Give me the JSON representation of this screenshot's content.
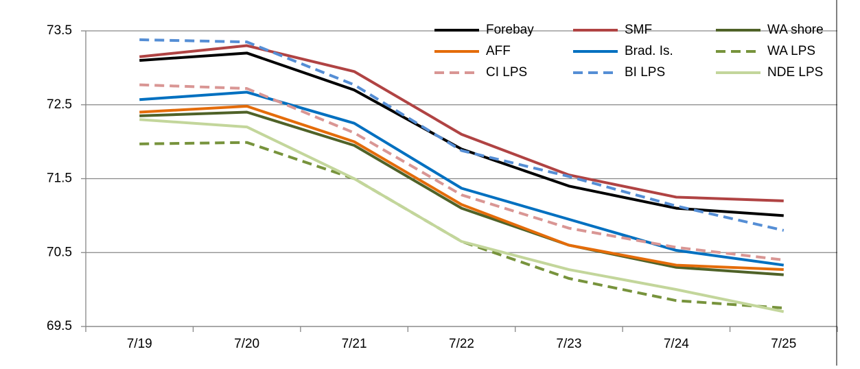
{
  "chart_data": {
    "type": "line",
    "categories": [
      "7/19",
      "7/20",
      "7/21",
      "7/22",
      "7/23",
      "7/24",
      "7/25"
    ],
    "series": [
      {
        "name": "Forebay",
        "color": "#000000",
        "dash": false,
        "values": [
          73.1,
          73.2,
          72.7,
          71.9,
          71.4,
          71.1,
          71.0
        ]
      },
      {
        "name": "SMF",
        "color": "#b04343",
        "dash": false,
        "values": [
          73.15,
          73.3,
          72.95,
          72.1,
          71.55,
          71.25,
          71.2
        ]
      },
      {
        "name": "WA shore",
        "color": "#4f6228",
        "dash": false,
        "values": [
          72.35,
          72.4,
          71.95,
          71.1,
          70.6,
          70.3,
          70.2
        ]
      },
      {
        "name": "AFF",
        "color": "#e46c0a",
        "dash": false,
        "values": [
          72.4,
          72.48,
          72.0,
          71.15,
          70.6,
          70.33,
          70.27
        ]
      },
      {
        "name": "Brad. Is.",
        "color": "#0070c0",
        "dash": false,
        "values": [
          72.57,
          72.67,
          72.25,
          71.37,
          70.95,
          70.53,
          70.33
        ]
      },
      {
        "name": "WA LPS",
        "color": "#77933c",
        "dash": true,
        "values": [
          71.97,
          71.99,
          71.5,
          70.65,
          70.15,
          69.85,
          69.75
        ]
      },
      {
        "name": "CI LPS",
        "color": "#d99694",
        "dash": true,
        "values": [
          72.77,
          72.72,
          72.12,
          71.28,
          70.83,
          70.57,
          70.4
        ]
      },
      {
        "name": "BI LPS",
        "color": "#558ed5",
        "dash": true,
        "values": [
          73.38,
          73.35,
          72.77,
          71.88,
          71.53,
          71.13,
          70.8
        ]
      },
      {
        "name": "NDE LPS",
        "color": "#c3d69b",
        "dash": false,
        "values": [
          72.3,
          72.2,
          71.5,
          70.65,
          70.27,
          70.0,
          69.7
        ]
      }
    ],
    "ylim": [
      69.5,
      73.5
    ],
    "yticks": [
      69.5,
      70.5,
      71.5,
      72.5,
      73.5
    ],
    "grid": true,
    "legend": "top-right"
  }
}
